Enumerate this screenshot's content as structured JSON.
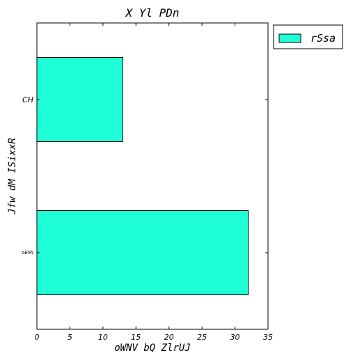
{
  "chart_data": {
    "type": "bar",
    "orientation": "horizontal",
    "title": "X  Yl PDn",
    "xlabel": "oWNV bQ ZlrUJ",
    "ylabel": "Jfw dM ISixxR",
    "categories": [
      "CH",
      "oEMI"
    ],
    "series": [
      {
        "name": "rSsa",
        "values": [
          13,
          32
        ],
        "color": "#1fffd6"
      }
    ],
    "xlim": [
      0,
      35
    ],
    "xticks": [
      0,
      5,
      10,
      15,
      20,
      25,
      30,
      35
    ],
    "grid": false,
    "legend_position": "outside-top-right"
  }
}
